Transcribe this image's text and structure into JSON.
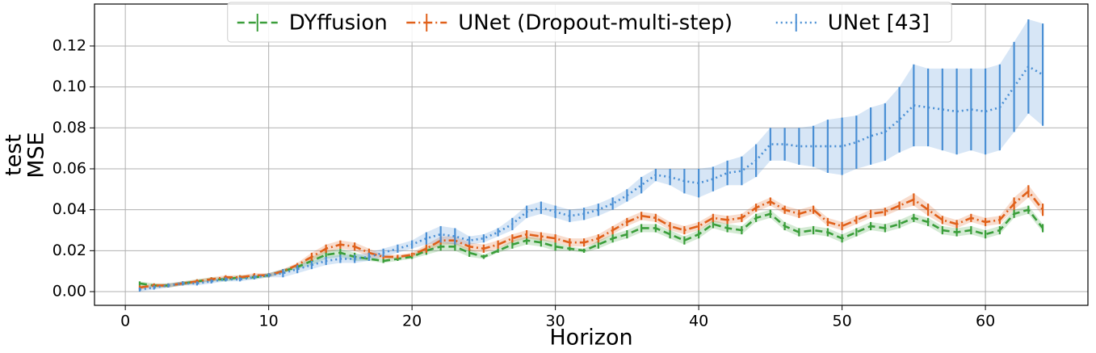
{
  "chart_data": {
    "type": "line",
    "xlabel": "Horizon",
    "ylabel": [
      "test",
      "MSE"
    ],
    "x": [
      1,
      2,
      3,
      4,
      5,
      6,
      7,
      8,
      9,
      10,
      11,
      12,
      13,
      14,
      15,
      16,
      17,
      18,
      19,
      20,
      21,
      22,
      23,
      24,
      25,
      26,
      27,
      28,
      29,
      30,
      31,
      32,
      33,
      34,
      35,
      36,
      37,
      38,
      39,
      40,
      41,
      42,
      43,
      44,
      45,
      46,
      47,
      48,
      49,
      50,
      51,
      52,
      53,
      54,
      55,
      56,
      57,
      58,
      59,
      60,
      61,
      62,
      63,
      64
    ],
    "xlim": [
      -2.15,
      67.15
    ],
    "xticks": [
      0,
      10,
      20,
      30,
      40,
      50,
      60
    ],
    "ylim": [
      -0.0067,
      0.1405
    ],
    "yticks": [
      {
        "value": 0,
        "label": "0.00"
      },
      {
        "value": 0.02,
        "label": "0.02"
      },
      {
        "value": 0.04,
        "label": "0.04"
      },
      {
        "value": 0.06,
        "label": "0.06"
      },
      {
        "value": 0.08,
        "label": "0.08"
      },
      {
        "value": 0.1,
        "label": "0.10"
      },
      {
        "value": 0.12,
        "label": "0.12"
      }
    ],
    "grid": true,
    "legend": "upper center",
    "series": [
      {
        "name": "DYffusion",
        "color": "#3a9e3a",
        "dash": "9,5",
        "values": [
          0.004,
          0.003,
          0.003,
          0.004,
          0.005,
          0.006,
          0.006,
          0.007,
          0.007,
          0.008,
          0.01,
          0.012,
          0.015,
          0.018,
          0.019,
          0.017,
          0.016,
          0.015,
          0.016,
          0.017,
          0.02,
          0.022,
          0.022,
          0.019,
          0.017,
          0.02,
          0.023,
          0.025,
          0.024,
          0.022,
          0.021,
          0.02,
          0.023,
          0.026,
          0.028,
          0.031,
          0.031,
          0.028,
          0.025,
          0.028,
          0.033,
          0.031,
          0.03,
          0.036,
          0.038,
          0.032,
          0.029,
          0.03,
          0.029,
          0.026,
          0.029,
          0.032,
          0.031,
          0.033,
          0.036,
          0.034,
          0.03,
          0.029,
          0.03,
          0.028,
          0.03,
          0.038,
          0.04,
          0.031
        ],
        "errors": [
          0.001,
          0.001,
          0.001,
          0.001,
          0.001,
          0.001,
          0.001,
          0.001,
          0.001,
          0.001,
          0.001,
          0.001,
          0.002,
          0.002,
          0.002,
          0.002,
          0.001,
          0.001,
          0.001,
          0.001,
          0.002,
          0.002,
          0.002,
          0.002,
          0.001,
          0.001,
          0.002,
          0.002,
          0.002,
          0.002,
          0.001,
          0.001,
          0.002,
          0.002,
          0.002,
          0.002,
          0.002,
          0.002,
          0.002,
          0.002,
          0.002,
          0.002,
          0.002,
          0.002,
          0.002,
          0.002,
          0.002,
          0.002,
          0.002,
          0.002,
          0.002,
          0.002,
          0.002,
          0.002,
          0.002,
          0.002,
          0.002,
          0.002,
          0.002,
          0.002,
          0.002,
          0.002,
          0.002,
          0.002
        ]
      },
      {
        "name": "UNet (Dropout-multi-step)",
        "color": "#e0601a",
        "dash": "11,4,2,4",
        "values": [
          0.002,
          0.003,
          0.003,
          0.004,
          0.005,
          0.006,
          0.007,
          0.007,
          0.008,
          0.008,
          0.01,
          0.013,
          0.017,
          0.021,
          0.023,
          0.022,
          0.019,
          0.017,
          0.017,
          0.018,
          0.021,
          0.025,
          0.025,
          0.022,
          0.021,
          0.023,
          0.026,
          0.028,
          0.027,
          0.026,
          0.024,
          0.024,
          0.026,
          0.03,
          0.034,
          0.037,
          0.036,
          0.032,
          0.03,
          0.032,
          0.036,
          0.035,
          0.036,
          0.041,
          0.044,
          0.04,
          0.038,
          0.04,
          0.034,
          0.032,
          0.035,
          0.038,
          0.039,
          0.042,
          0.045,
          0.04,
          0.035,
          0.033,
          0.036,
          0.034,
          0.035,
          0.043,
          0.049,
          0.04
        ],
        "errors": [
          0.001,
          0.001,
          0.001,
          0.001,
          0.001,
          0.001,
          0.001,
          0.001,
          0.001,
          0.001,
          0.001,
          0.001,
          0.002,
          0.002,
          0.002,
          0.002,
          0.002,
          0.001,
          0.001,
          0.001,
          0.002,
          0.002,
          0.002,
          0.002,
          0.002,
          0.002,
          0.002,
          0.002,
          0.002,
          0.002,
          0.002,
          0.002,
          0.002,
          0.002,
          0.002,
          0.002,
          0.002,
          0.002,
          0.002,
          0.002,
          0.002,
          0.002,
          0.002,
          0.002,
          0.002,
          0.002,
          0.002,
          0.002,
          0.002,
          0.002,
          0.002,
          0.002,
          0.002,
          0.002,
          0.003,
          0.003,
          0.002,
          0.002,
          0.002,
          0.002,
          0.002,
          0.003,
          0.003,
          0.003
        ]
      },
      {
        "name": "UNet [43]",
        "color": "#4a8fd4",
        "dash": "2,4",
        "values": [
          0.001,
          0.002,
          0.003,
          0.004,
          0.004,
          0.005,
          0.006,
          0.006,
          0.007,
          0.008,
          0.009,
          0.011,
          0.013,
          0.015,
          0.016,
          0.016,
          0.017,
          0.019,
          0.021,
          0.023,
          0.026,
          0.028,
          0.027,
          0.025,
          0.026,
          0.029,
          0.033,
          0.039,
          0.041,
          0.039,
          0.037,
          0.038,
          0.04,
          0.043,
          0.047,
          0.052,
          0.057,
          0.056,
          0.054,
          0.053,
          0.055,
          0.058,
          0.059,
          0.064,
          0.072,
          0.072,
          0.071,
          0.071,
          0.071,
          0.071,
          0.073,
          0.076,
          0.078,
          0.084,
          0.091,
          0.09,
          0.089,
          0.088,
          0.089,
          0.088,
          0.09,
          0.1,
          0.11,
          0.106
        ],
        "errors": [
          0.001,
          0.001,
          0.001,
          0.001,
          0.001,
          0.001,
          0.001,
          0.001,
          0.001,
          0.001,
          0.002,
          0.002,
          0.002,
          0.002,
          0.002,
          0.002,
          0.002,
          0.002,
          0.002,
          0.002,
          0.003,
          0.004,
          0.004,
          0.002,
          0.002,
          0.002,
          0.003,
          0.003,
          0.003,
          0.003,
          0.003,
          0.003,
          0.003,
          0.003,
          0.003,
          0.004,
          0.003,
          0.004,
          0.006,
          0.007,
          0.006,
          0.006,
          0.007,
          0.008,
          0.008,
          0.008,
          0.009,
          0.01,
          0.013,
          0.014,
          0.013,
          0.014,
          0.014,
          0.016,
          0.02,
          0.019,
          0.02,
          0.021,
          0.02,
          0.021,
          0.021,
          0.022,
          0.023,
          0.025
        ]
      }
    ]
  }
}
